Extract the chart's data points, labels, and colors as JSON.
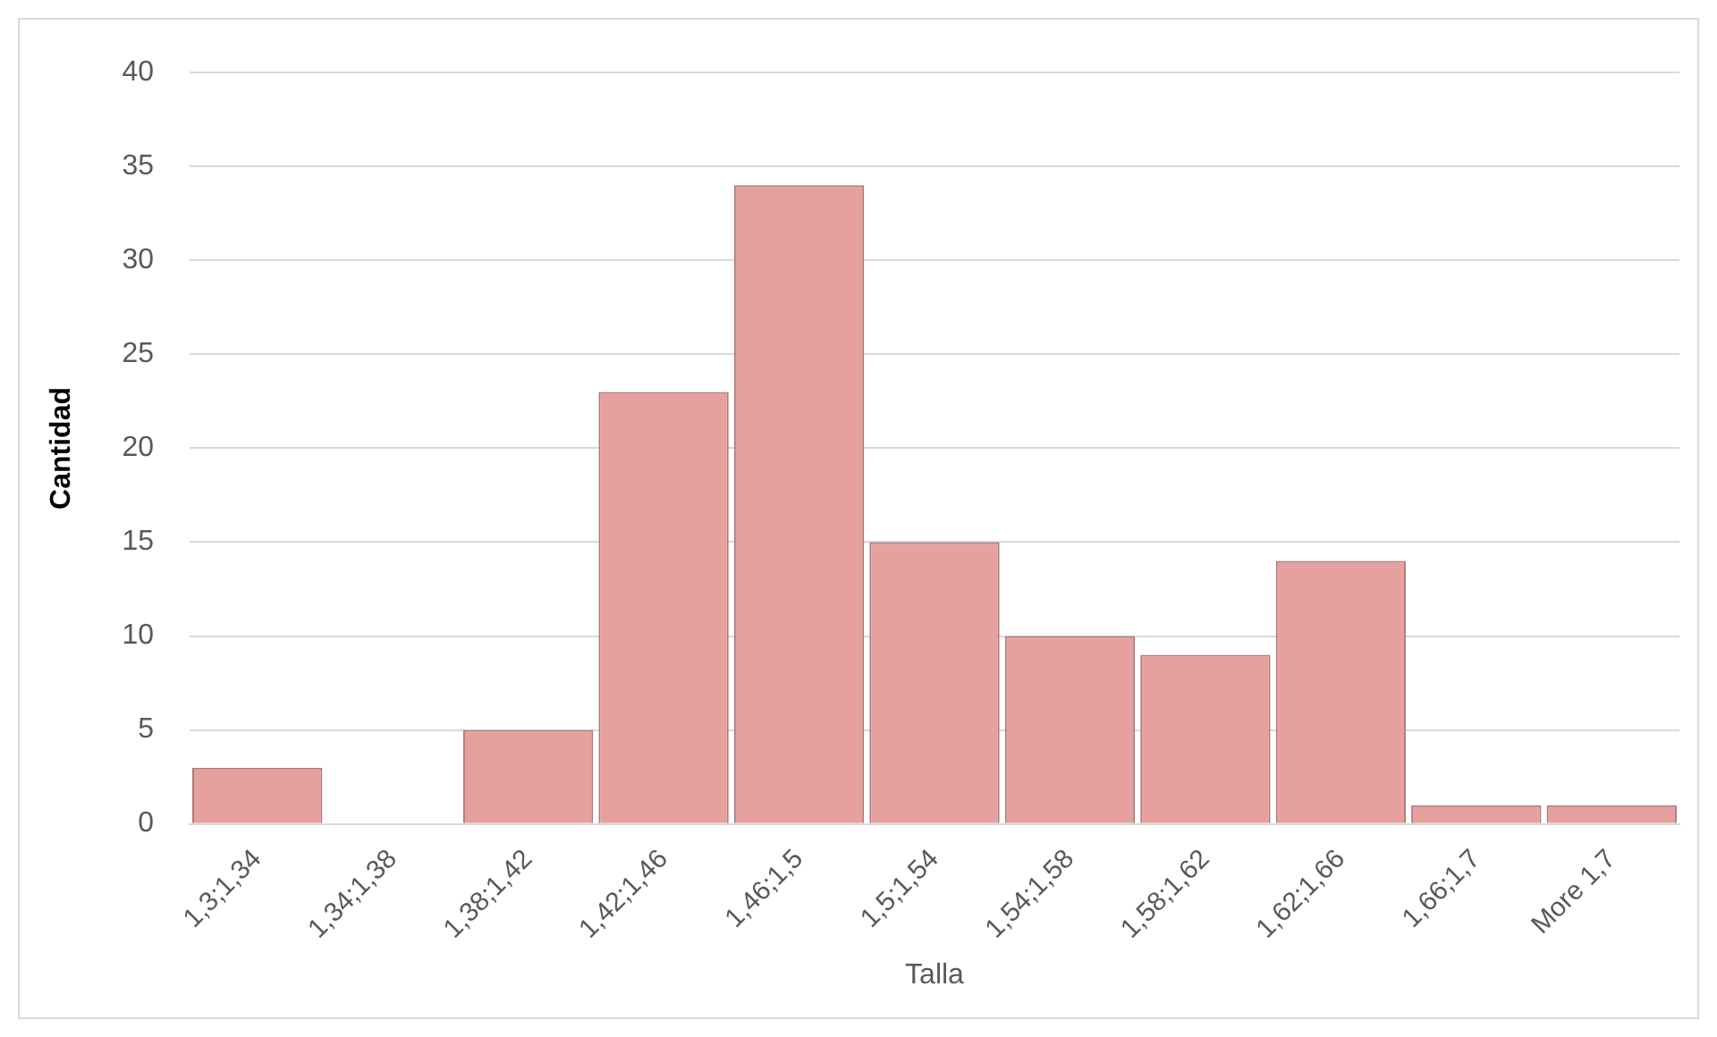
{
  "chart_data": {
    "type": "bar",
    "categories": [
      "1,3;1,34",
      "1,34;1,38",
      "1,38;1,42",
      "1,42;1,46",
      "1,46;1,5",
      "1,5;1,54",
      "1,54;1,58",
      "1,58;1,62",
      "1,62;1,66",
      "1,66;1,7",
      "More 1,7"
    ],
    "values": [
      3,
      0,
      5,
      23,
      34,
      15,
      10,
      9,
      14,
      1,
      1
    ],
    "color": "#e6a09e",
    "xlabel": "Talla",
    "ylabel": "Cantidad",
    "ylim": [
      0,
      40
    ],
    "yticks": [
      0,
      5,
      10,
      15,
      20,
      25,
      30,
      35,
      40
    ],
    "grid": "y",
    "legend": false
  }
}
